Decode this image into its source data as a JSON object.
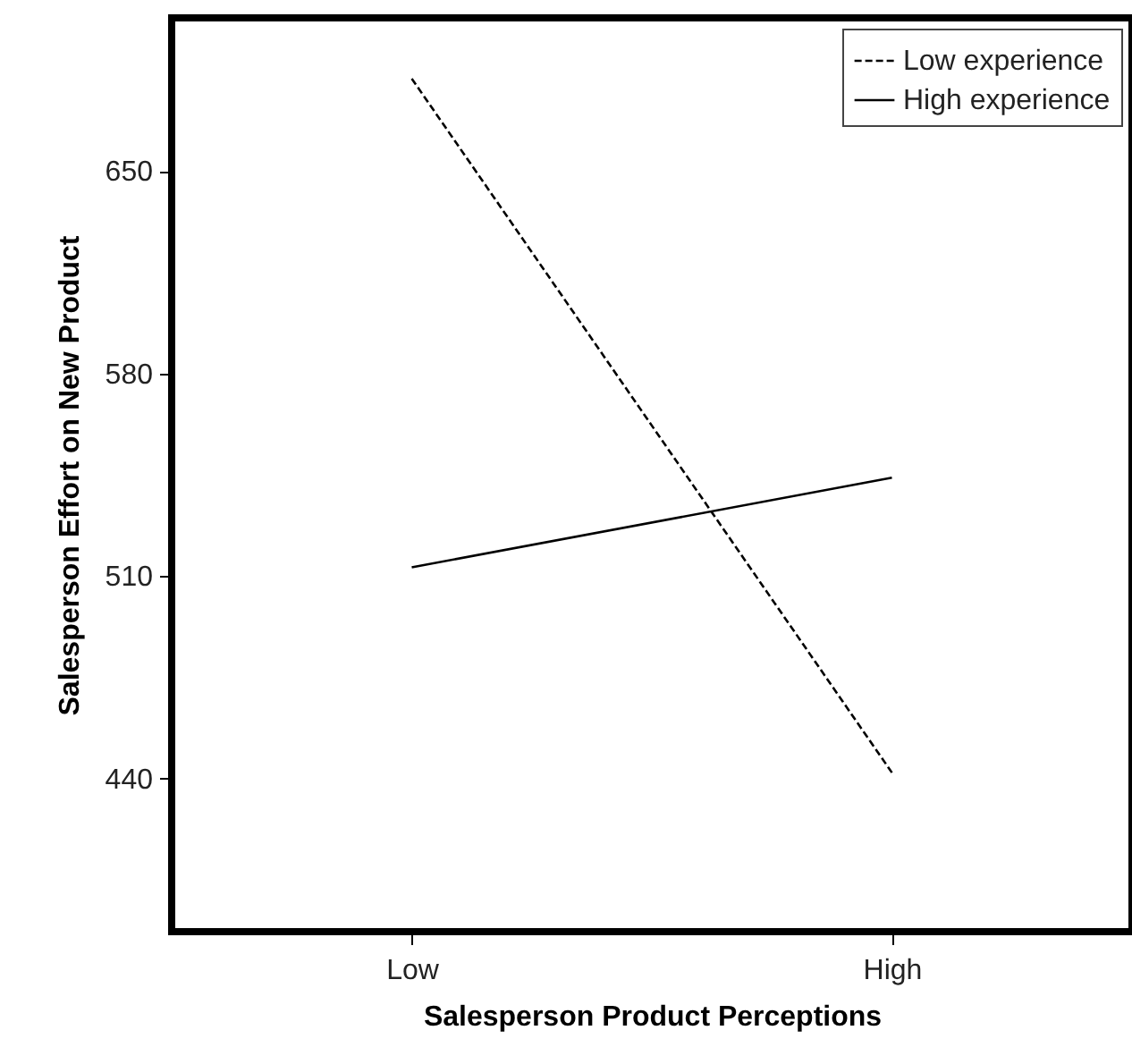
{
  "chart_data": {
    "type": "line",
    "xlabel": "Salesperson Product Perceptions",
    "ylabel": "Salesperson Effort on New Product",
    "categories": [
      "Low",
      "High"
    ],
    "series": [
      {
        "name": "Low experience",
        "color": "#000000",
        "line_style": "dashed",
        "values": [
          682,
          442
        ]
      },
      {
        "name": "High experience",
        "color": "#000000",
        "line_style": "solid",
        "values": [
          513,
          544
        ]
      }
    ],
    "ylim": [
      387,
      703
    ],
    "yticks": [
      440,
      510,
      580,
      650
    ],
    "grid": false,
    "legend": "top right",
    "marker": "none"
  }
}
